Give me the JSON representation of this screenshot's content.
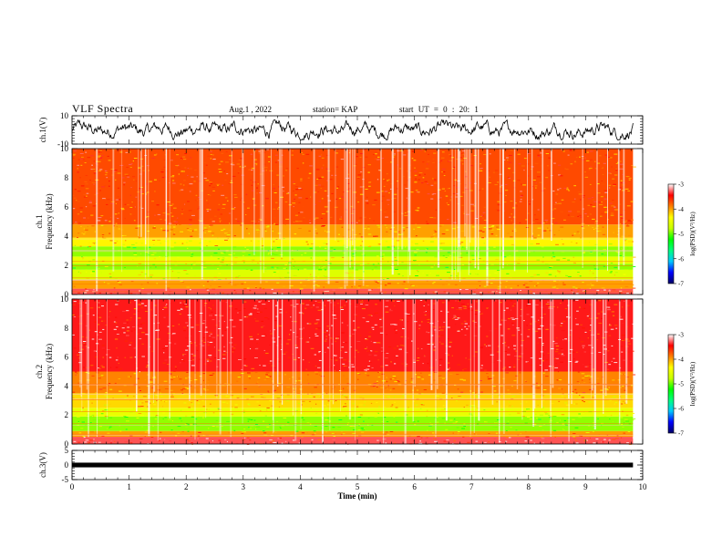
{
  "header": {
    "title": "VLF Spectra",
    "date": "Aug.1 , 2022",
    "station": "station= KAP",
    "start_ut": "start UT = 0 : 20: 1"
  },
  "chart_data": [
    {
      "type": "line",
      "panel": "ch1-waveform",
      "ylabel": "ch.1(V)",
      "ylim": [
        -10,
        10
      ],
      "yticks": [
        "10",
        "-10"
      ],
      "xlim": [
        0,
        10
      ],
      "series": [
        {
          "values": "noisy waveform, approx. -6 to +6 V throughout 0–9.8 min"
        }
      ]
    },
    {
      "type": "heatmap",
      "panel": "ch1-spectrogram",
      "ylabel_top": "ch.1",
      "ylabel": "Frequency (kHz)",
      "ylim": [
        0,
        10
      ],
      "yticks": [
        "0",
        "2",
        "4",
        "6",
        "8",
        "10"
      ],
      "xlim": [
        0,
        9.83
      ],
      "bands": [
        {
          "from": 0.0,
          "to": 0.4,
          "level": -3.3
        },
        {
          "from": 0.4,
          "to": 1.0,
          "level": -4.0
        },
        {
          "from": 1.0,
          "to": 1.7,
          "level": -4.6
        },
        {
          "from": 1.7,
          "to": 2.1,
          "level": -4.9
        },
        {
          "from": 2.1,
          "to": 2.6,
          "level": -4.5
        },
        {
          "from": 2.6,
          "to": 3.3,
          "level": -4.9
        },
        {
          "from": 3.3,
          "to": 3.9,
          "level": -4.3
        },
        {
          "from": 3.9,
          "to": 4.8,
          "level": -4.0
        },
        {
          "from": 4.8,
          "to": 10.0,
          "level": -3.7
        }
      ]
    },
    {
      "type": "heatmap",
      "panel": "ch2-spectrogram",
      "ylabel_top": "ch.2",
      "ylabel": "Frequency (kHz)",
      "ylim": [
        0,
        10
      ],
      "yticks": [
        "0",
        "2",
        "4",
        "6",
        "8",
        "10"
      ],
      "xlim": [
        0,
        9.83
      ],
      "bands": [
        {
          "from": 0.0,
          "to": 0.5,
          "level": -3.3
        },
        {
          "from": 0.5,
          "to": 0.9,
          "level": -4.0
        },
        {
          "from": 0.9,
          "to": 1.9,
          "level": -4.9
        },
        {
          "from": 1.9,
          "to": 2.5,
          "level": -4.5
        },
        {
          "from": 2.5,
          "to": 3.5,
          "level": -4.2
        },
        {
          "from": 3.5,
          "to": 5.0,
          "level": -3.9
        },
        {
          "from": 5.0,
          "to": 10.0,
          "level": -3.4
        }
      ]
    },
    {
      "type": "line",
      "panel": "ch3-waveform",
      "ylabel": "ch.3(V)",
      "ylim": [
        -5,
        5
      ],
      "yticks": [
        "5",
        "0",
        "-5"
      ],
      "xlim": [
        0,
        10
      ],
      "series": [
        {
          "values": "nearly constant, dense signal around 0 V from 0 to 9.83 min"
        }
      ]
    }
  ],
  "x_axis": {
    "label": "Time (min)",
    "ticks": [
      "0",
      "1",
      "2",
      "3",
      "4",
      "5",
      "6",
      "7",
      "8",
      "9",
      "10"
    ]
  },
  "colorbar": {
    "label": "log(PSD)(V²/Hz)",
    "range": [
      -7,
      -3
    ],
    "ticks": [
      "-3",
      "-4",
      "-5",
      "-6",
      "-7"
    ],
    "stops": [
      "#000066",
      "#0000ff",
      "#00c8ff",
      "#00ff80",
      "#00ff00",
      "#c8ff00",
      "#ffff00",
      "#ff8000",
      "#ff0000",
      "#ffffff"
    ]
  }
}
